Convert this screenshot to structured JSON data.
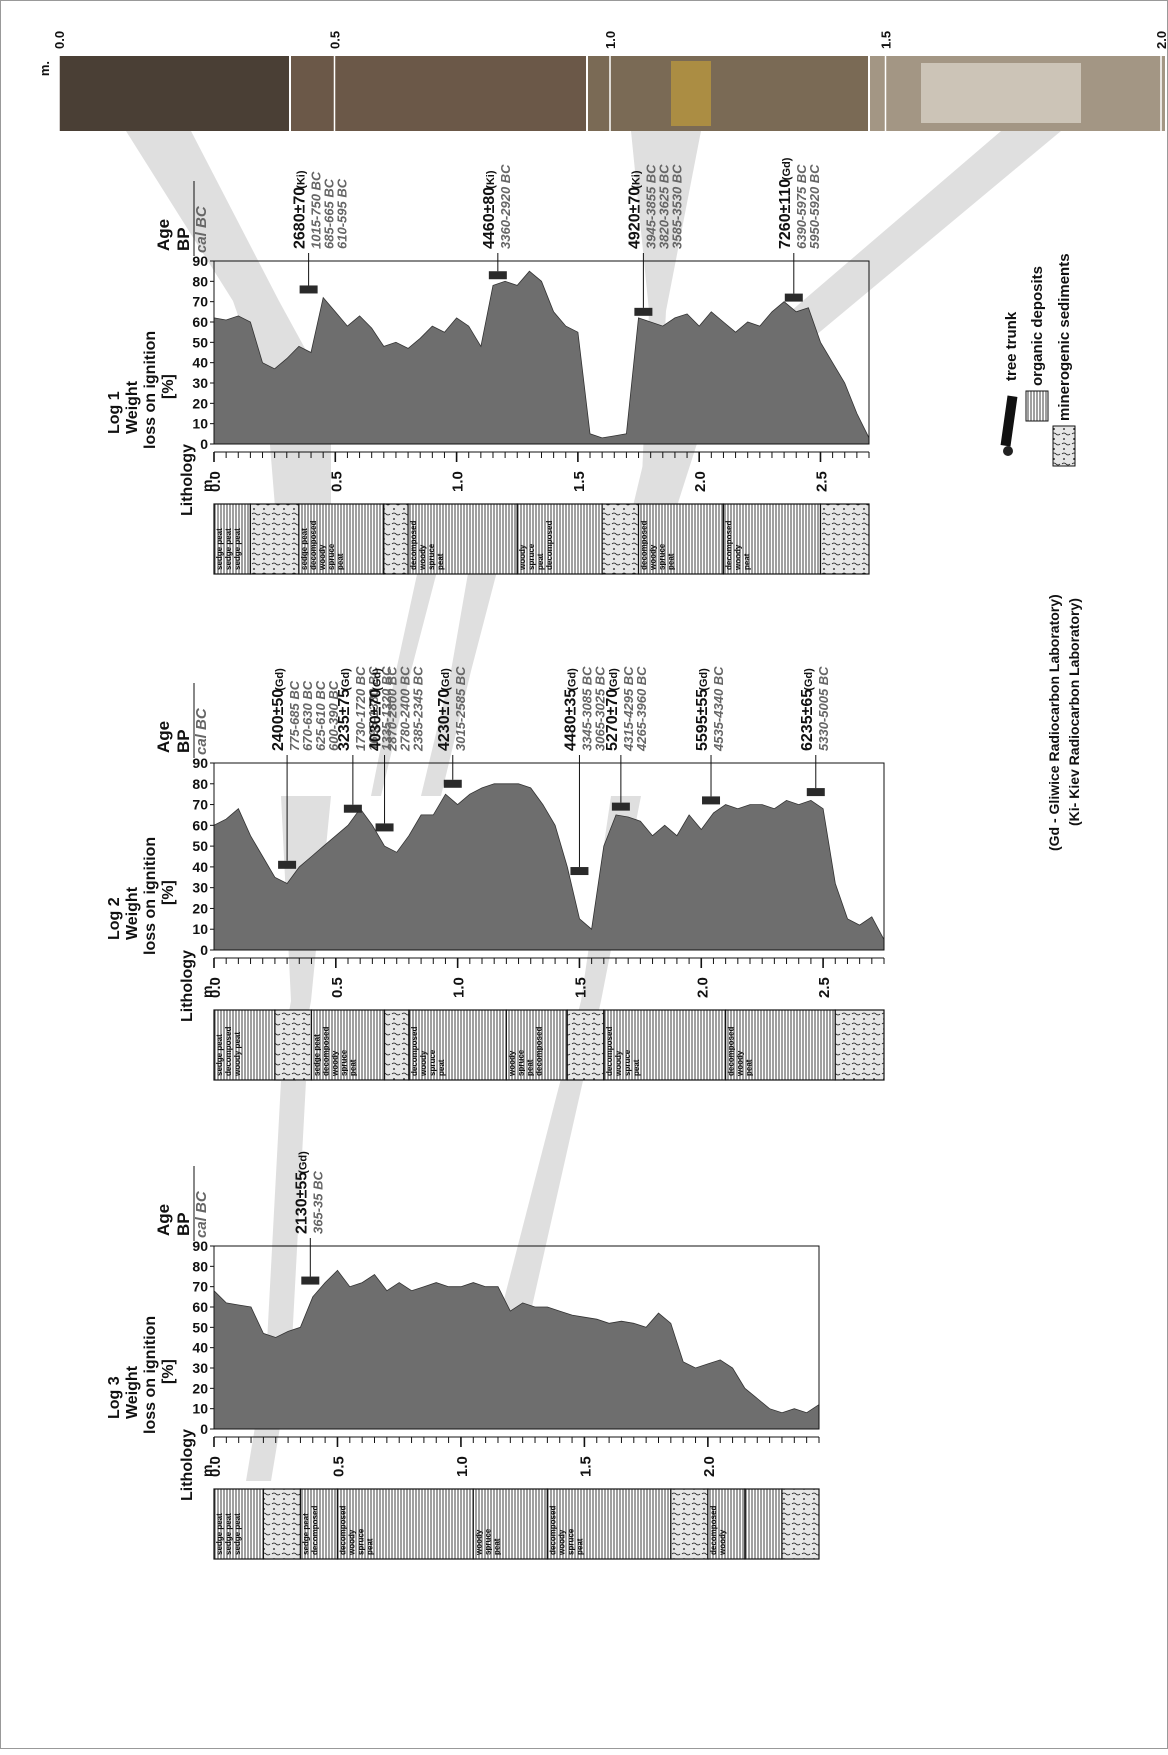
{
  "photo_scale": {
    "unit": "m.",
    "ticks": [
      "0.0",
      "0.5",
      "1.0",
      "1.5",
      "2.0"
    ]
  },
  "legend": {
    "tree_trunk": "tree trunk",
    "organic": "organic deposits",
    "minerogenic": "minerogenic sediments",
    "lab_gd": "(Gd - Gliwice Radiocarbon Laboratory)",
    "lab_ki": "(Ki- Kiev Radiocarbon Laboratory)"
  },
  "common": {
    "lithology": "Lithology",
    "age": "Age",
    "bp": "BP",
    "cal_bc": "cal BC",
    "depth_unit": "m.",
    "y_label_1": "Weight",
    "y_label_2": "loss on ignition",
    "y_label_3": "[%]"
  },
  "colors": {
    "fill": "#6e6e6e",
    "band": "#dcdcdc",
    "litho_peat": "#ffffff",
    "litho_mineral": "#e8e8e8"
  },
  "chart_data": [
    {
      "type": "area",
      "title": "Log 1",
      "xlabel": "m.",
      "ylabel": "Weight loss on ignition [%]",
      "xlim": [
        0,
        2.7
      ],
      "ylim": [
        0,
        90
      ],
      "x_ticks": [
        "0.0",
        "0.5",
        "1.0",
        "1.5",
        "2.0",
        "2.5"
      ],
      "y_ticks": [
        "0",
        "10",
        "20",
        "30",
        "40",
        "50",
        "60",
        "70",
        "80",
        "90"
      ],
      "x": [
        0,
        0.05,
        0.1,
        0.15,
        0.2,
        0.25,
        0.3,
        0.35,
        0.4,
        0.45,
        0.5,
        0.55,
        0.6,
        0.65,
        0.7,
        0.75,
        0.8,
        0.85,
        0.9,
        0.95,
        1.0,
        1.05,
        1.1,
        1.15,
        1.2,
        1.25,
        1.3,
        1.35,
        1.4,
        1.45,
        1.5,
        1.55,
        1.6,
        1.65,
        1.7,
        1.75,
        1.8,
        1.85,
        1.9,
        1.95,
        2.0,
        2.05,
        2.1,
        2.15,
        2.2,
        2.25,
        2.3,
        2.35,
        2.4,
        2.45,
        2.5,
        2.55,
        2.6,
        2.65,
        2.7
      ],
      "values": [
        62,
        61,
        63,
        60,
        40,
        37,
        42,
        48,
        45,
        72,
        65,
        58,
        63,
        57,
        48,
        50,
        47,
        52,
        58,
        55,
        62,
        58,
        48,
        78,
        80,
        78,
        85,
        80,
        65,
        58,
        55,
        5,
        3,
        4,
        5,
        62,
        60,
        58,
        62,
        64,
        58,
        65,
        60,
        55,
        60,
        58,
        65,
        70,
        65,
        67,
        50,
        40,
        30,
        15,
        3
      ],
      "samples": [
        {
          "depth": 0.39,
          "value": 76,
          "age_bp": "2680±70",
          "lab": "(Ki)",
          "cal": [
            "1015-750 BC",
            "685-665 BC",
            "610-595 BC"
          ]
        },
        {
          "depth": 1.17,
          "value": 83,
          "age_bp": "4460±80",
          "lab": "(Ki)",
          "cal": [
            "3360-2920 BC"
          ]
        },
        {
          "depth": 1.77,
          "value": 65,
          "age_bp": "4920±70",
          "lab": "(Ki)",
          "cal": [
            "3945-3855 BC",
            "3820-3625 BC",
            "3585-3530 BC"
          ]
        },
        {
          "depth": 2.39,
          "value": 72,
          "age_bp": "7260±110",
          "lab": "(Gd)",
          "cal": [
            "6390-5975 BC",
            "5950-5920 BC"
          ]
        }
      ],
      "lithology": [
        {
          "from": 0.0,
          "to": 0.15,
          "kind": "peat",
          "text": [
            "sedge peat",
            "sedge peat",
            "sedge peat"
          ]
        },
        {
          "from": 0.15,
          "to": 0.35,
          "kind": "mineral",
          "text": []
        },
        {
          "from": 0.35,
          "to": 0.7,
          "kind": "peat",
          "text": [
            "sedge peat",
            "decomposed",
            "woody",
            "spruce",
            "peat"
          ]
        },
        {
          "from": 0.7,
          "to": 0.8,
          "kind": "mineral",
          "text": []
        },
        {
          "from": 0.8,
          "to": 1.25,
          "kind": "peat",
          "text": [
            "decomposed",
            "woody",
            "spruce",
            "peat"
          ]
        },
        {
          "from": 1.25,
          "to": 1.6,
          "kind": "peat",
          "text": [
            "woody",
            "spruce",
            "peat",
            "decomposed"
          ]
        },
        {
          "from": 1.6,
          "to": 1.75,
          "kind": "mineral",
          "text": []
        },
        {
          "from": 1.75,
          "to": 2.1,
          "kind": "peat",
          "text": [
            "decomposed",
            "woody",
            "spruce",
            "peat"
          ]
        },
        {
          "from": 2.1,
          "to": 2.5,
          "kind": "peat",
          "text": [
            "decomposed",
            "woody",
            "peat"
          ]
        },
        {
          "from": 2.5,
          "to": 2.7,
          "kind": "mineral",
          "text": []
        }
      ]
    },
    {
      "type": "area",
      "title": "Log 2",
      "xlabel": "m.",
      "ylabel": "Weight loss on ignition [%]",
      "xlim": [
        0,
        2.75
      ],
      "ylim": [
        0,
        90
      ],
      "x_ticks": [
        "0.0",
        "0.5",
        "1.0",
        "1.5",
        "2.0",
        "2.5"
      ],
      "y_ticks": [
        "0",
        "10",
        "20",
        "30",
        "40",
        "50",
        "60",
        "70",
        "80",
        "90"
      ],
      "x": [
        0,
        0.05,
        0.1,
        0.15,
        0.2,
        0.25,
        0.3,
        0.35,
        0.4,
        0.45,
        0.5,
        0.55,
        0.6,
        0.65,
        0.7,
        0.75,
        0.8,
        0.85,
        0.9,
        0.95,
        1.0,
        1.05,
        1.1,
        1.15,
        1.2,
        1.25,
        1.3,
        1.35,
        1.4,
        1.45,
        1.5,
        1.55,
        1.6,
        1.65,
        1.7,
        1.75,
        1.8,
        1.85,
        1.9,
        1.95,
        2.0,
        2.05,
        2.1,
        2.15,
        2.2,
        2.25,
        2.3,
        2.35,
        2.4,
        2.45,
        2.5,
        2.55,
        2.6,
        2.65,
        2.7,
        2.75
      ],
      "values": [
        60,
        63,
        68,
        55,
        45,
        35,
        32,
        40,
        45,
        50,
        55,
        60,
        68,
        60,
        50,
        47,
        55,
        65,
        65,
        75,
        70,
        75,
        78,
        80,
        80,
        80,
        78,
        70,
        60,
        40,
        15,
        10,
        50,
        65,
        64,
        62,
        55,
        60,
        55,
        65,
        58,
        66,
        70,
        68,
        70,
        70,
        68,
        72,
        70,
        72,
        68,
        32,
        15,
        12,
        16,
        5
      ],
      "samples": [
        {
          "depth": 0.3,
          "value": 41,
          "age_bp": "2400±50",
          "lab": "(Gd)",
          "cal": [
            "775-685 BC",
            "670-630 BC",
            "625-610 BC",
            "600-390 BC"
          ]
        },
        {
          "depth": 0.57,
          "value": 68,
          "age_bp": "3235±75",
          "lab": "(Gd)",
          "cal": [
            "1730-1720 BC",
            "1695-1380 BC",
            "1335-1320 BC"
          ]
        },
        {
          "depth": 0.7,
          "value": 59,
          "age_bp": "4030±70",
          "lab": "(Gd)",
          "cal": [
            "2870-2800 BC",
            "2780-2400 BC",
            "2385-2345 BC"
          ]
        },
        {
          "depth": 0.98,
          "value": 80,
          "age_bp": "4230±70",
          "lab": "(Gd)",
          "cal": [
            "3015-2585 BC"
          ]
        },
        {
          "depth": 1.5,
          "value": 38,
          "age_bp": "4480±35",
          "lab": "(Gd)",
          "cal": [
            "3345-3085 BC",
            "3065-3025 BC"
          ]
        },
        {
          "depth": 1.67,
          "value": 69,
          "age_bp": "5270±70",
          "lab": "(Gd)",
          "cal": [
            "4315-4295 BC",
            "4265-3960 BC"
          ]
        },
        {
          "depth": 2.04,
          "value": 72,
          "age_bp": "5595±55",
          "lab": "(Gd)",
          "cal": [
            "4535-4340 BC"
          ]
        },
        {
          "depth": 2.47,
          "value": 76,
          "age_bp": "6235±65",
          "lab": "(Gd)",
          "cal": [
            "5330-5005 BC"
          ]
        }
      ],
      "lithology": [
        {
          "from": 0.0,
          "to": 0.25,
          "kind": "peat",
          "text": [
            "sedge peat",
            "decomposed",
            "woody peat"
          ]
        },
        {
          "from": 0.25,
          "to": 0.4,
          "kind": "mineral",
          "text": []
        },
        {
          "from": 0.4,
          "to": 0.7,
          "kind": "peat",
          "text": [
            "sedge peat",
            "decomposed",
            "woody",
            "spruce",
            "peat"
          ]
        },
        {
          "from": 0.7,
          "to": 0.8,
          "kind": "mineral",
          "text": []
        },
        {
          "from": 0.8,
          "to": 1.2,
          "kind": "peat",
          "text": [
            "decomposed",
            "woody",
            "spruce",
            "peat"
          ]
        },
        {
          "from": 1.2,
          "to": 1.45,
          "kind": "peat",
          "text": [
            "woody",
            "spruce",
            "peat",
            "decomposed"
          ]
        },
        {
          "from": 1.45,
          "to": 1.6,
          "kind": "mineral",
          "text": []
        },
        {
          "from": 1.6,
          "to": 2.1,
          "kind": "peat",
          "text": [
            "decomposed",
            "woody",
            "spruce",
            "peat"
          ]
        },
        {
          "from": 2.1,
          "to": 2.55,
          "kind": "peat",
          "text": [
            "decomposed",
            "woody",
            "peat"
          ]
        },
        {
          "from": 2.55,
          "to": 2.75,
          "kind": "mineral",
          "text": []
        }
      ]
    },
    {
      "type": "area",
      "title": "Log 3",
      "xlabel": "m.",
      "ylabel": "Weight loss on ignition [%]",
      "xlim": [
        0,
        2.45
      ],
      "ylim": [
        0,
        90
      ],
      "x_ticks": [
        "0.0",
        "0.5",
        "1.0",
        "1.5",
        "2.0"
      ],
      "y_ticks": [
        "0",
        "10",
        "20",
        "30",
        "40",
        "50",
        "60",
        "70",
        "80",
        "90"
      ],
      "x": [
        0,
        0.05,
        0.1,
        0.15,
        0.2,
        0.25,
        0.3,
        0.35,
        0.4,
        0.45,
        0.5,
        0.55,
        0.6,
        0.65,
        0.7,
        0.75,
        0.8,
        0.85,
        0.9,
        0.95,
        1.0,
        1.05,
        1.1,
        1.15,
        1.2,
        1.25,
        1.3,
        1.35,
        1.4,
        1.45,
        1.5,
        1.55,
        1.6,
        1.65,
        1.7,
        1.75,
        1.8,
        1.85,
        1.9,
        1.95,
        2.0,
        2.05,
        2.1,
        2.15,
        2.2,
        2.25,
        2.3,
        2.35,
        2.4,
        2.45
      ],
      "values": [
        68,
        62,
        61,
        60,
        47,
        45,
        48,
        50,
        65,
        72,
        78,
        70,
        72,
        76,
        68,
        72,
        68,
        70,
        72,
        70,
        70,
        72,
        70,
        70,
        58,
        62,
        60,
        60,
        58,
        56,
        55,
        54,
        52,
        53,
        52,
        50,
        57,
        52,
        33,
        30,
        32,
        34,
        30,
        20,
        15,
        10,
        8,
        10,
        8,
        12
      ],
      "samples": [
        {
          "depth": 0.39,
          "value": 73,
          "age_bp": "2130±55",
          "lab": "(Gd)",
          "cal": [
            "365-35 BC"
          ]
        }
      ],
      "lithology": [
        {
          "from": 0.0,
          "to": 0.2,
          "kind": "peat",
          "text": [
            "sedge peat",
            "sedge peat",
            "sedge peat"
          ]
        },
        {
          "from": 0.2,
          "to": 0.35,
          "kind": "mineral",
          "text": []
        },
        {
          "from": 0.35,
          "to": 0.5,
          "kind": "peat",
          "text": [
            "sedge peat",
            "decomposed"
          ]
        },
        {
          "from": 0.5,
          "to": 1.05,
          "kind": "peat",
          "text": [
            "decomposed",
            "woody",
            "spruce",
            "peat"
          ]
        },
        {
          "from": 1.05,
          "to": 1.35,
          "kind": "peat",
          "text": [
            "woody",
            "spruce",
            "peat"
          ]
        },
        {
          "from": 1.35,
          "to": 1.85,
          "kind": "peat",
          "text": [
            "decomposed",
            "woody",
            "spruce",
            "peat"
          ]
        },
        {
          "from": 1.85,
          "to": 2.0,
          "kind": "mineral",
          "text": []
        },
        {
          "from": 2.0,
          "to": 2.15,
          "kind": "peat",
          "text": [
            "decomposed",
            "woody"
          ]
        },
        {
          "from": 2.15,
          "to": 2.3,
          "kind": "peat",
          "text": []
        },
        {
          "from": 2.3,
          "to": 2.45,
          "kind": "mineral",
          "text": []
        }
      ]
    }
  ]
}
